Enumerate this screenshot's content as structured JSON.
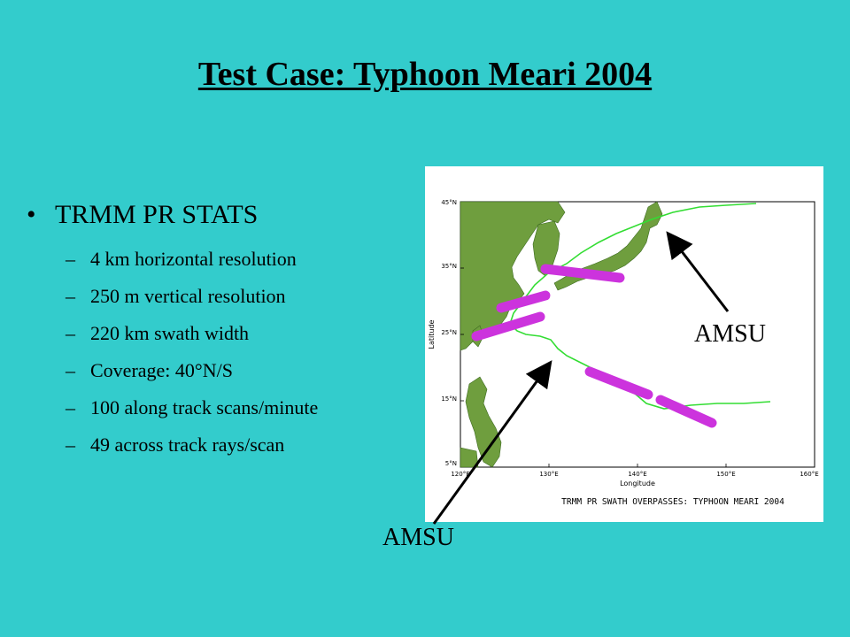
{
  "title": "Test Case: Typhoon Meari 2004",
  "main_bullet": "TRMM PR STATS",
  "sub_items": [
    "4 km horizontal resolution",
    "250 m vertical resolution",
    "220 km swath width",
    "Coverage: 40°N/S",
    "100 along track scans/minute",
    "49 across track rays/scan"
  ],
  "map": {
    "caption": "TRMM PR SWATH OVERPASSES: TYPHOON MEARI 2004",
    "xlabel": "Longitude",
    "ylabel": "Latitude",
    "x_ticks": [
      "120°E",
      "130°E",
      "140°E",
      "150°E",
      "160°E"
    ],
    "y_ticks": [
      "45°N",
      "35°N",
      "25°N",
      "15°N",
      "5°N"
    ],
    "colors": {
      "ocean": "#ffffff",
      "land": "#6f9e3e",
      "track": "#33dd33",
      "swath": "#cc33dd"
    }
  },
  "annotations": {
    "amsu_right": "AMSU",
    "amsu_bottom": "AMSU"
  }
}
